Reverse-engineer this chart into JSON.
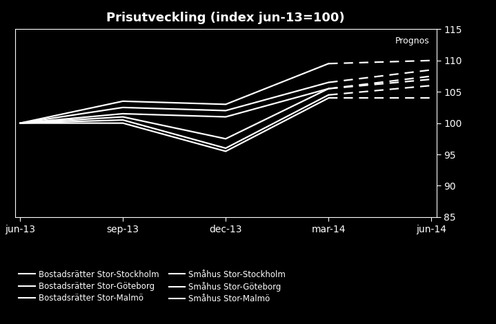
{
  "title": "Prisutveckling (index jun-13=100)",
  "background_color": "#000000",
  "text_color": "#ffffff",
  "ylim": [
    85,
    115
  ],
  "yticks": [
    85,
    90,
    95,
    100,
    105,
    110,
    115
  ],
  "xtick_labels": [
    "jun-13",
    "sep-13",
    "dec-13",
    "mar-14",
    "jun-14"
  ],
  "x_positions": [
    0,
    1,
    2,
    3,
    4
  ],
  "prognos_label": "Prognos",
  "series": [
    {
      "label": "Bostadsrätter Stor-Stockholm",
      "solid": [
        100,
        103.5,
        103,
        109.5
      ],
      "dashed": [
        109.5,
        110.0
      ]
    },
    {
      "label": "Bostadsrätter Stor-Göteborg",
      "solid": [
        100,
        102.5,
        102,
        106.5
      ],
      "dashed": [
        106.5,
        108.5
      ]
    },
    {
      "label": "Bostadsrätter Stor-Malmö",
      "solid": [
        100,
        101.5,
        101,
        105.5
      ],
      "dashed": [
        105.5,
        107.5
      ]
    },
    {
      "label": "Småhus Stor-Stockholm",
      "solid": [
        100,
        101,
        97.5,
        105.5
      ],
      "dashed": [
        105.5,
        107.0
      ]
    },
    {
      "label": "Småhus Stor-Göteborg",
      "solid": [
        100,
        100.5,
        96,
        104.5
      ],
      "dashed": [
        104.5,
        106.0
      ]
    },
    {
      "label": "Småhus Stor-Malmö",
      "solid": [
        100,
        100,
        95.5,
        104.0
      ],
      "dashed": [
        104.0,
        104.0
      ]
    }
  ],
  "legend_col1": [
    "Bostadsrätter Stor-Stockholm",
    "Bostadsrätter Stor-Malmö",
    "Småhus Stor-Göteborg"
  ],
  "legend_col2": [
    "Bostadsrätter Stor-Göteborg",
    "Småhus Stor-Stockholm",
    "Småhus Stor-Malmö"
  ]
}
